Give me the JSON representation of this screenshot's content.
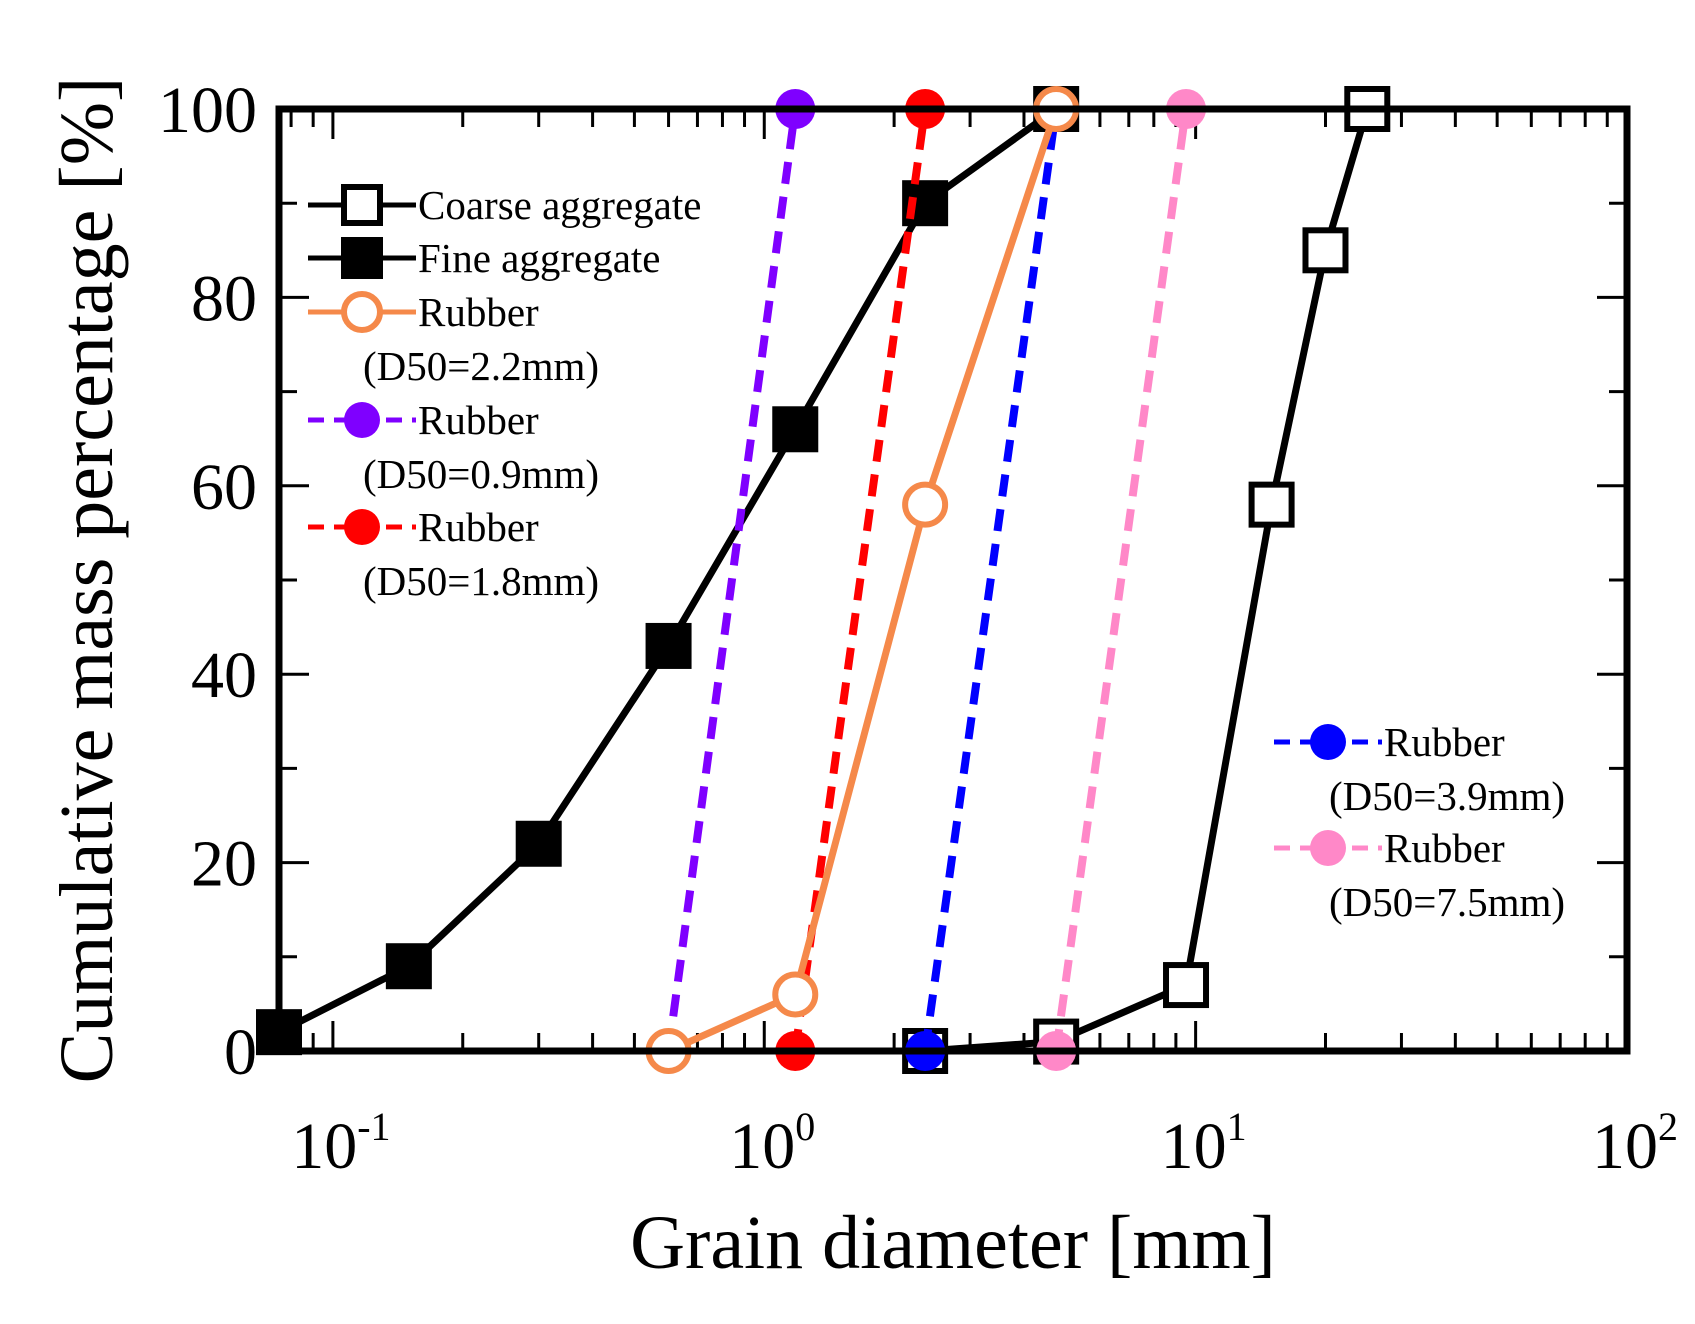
{
  "chart_data": {
    "type": "line",
    "xscale": "log",
    "xlabel": "Grain diameter [mm]",
    "ylabel": "Cumulative mass percentage [%]",
    "xlim": [
      0.075,
      100
    ],
    "ylim": [
      0,
      100
    ],
    "x_ticks": [
      {
        "base": "10",
        "exp": "-1",
        "value": 0.1
      },
      {
        "base": "10",
        "exp": "0",
        "value": 1
      },
      {
        "base": "10",
        "exp": "1",
        "value": 10
      },
      {
        "base": "10",
        "exp": "2",
        "value": 100
      }
    ],
    "y_ticks": [
      "0",
      "20",
      "40",
      "60",
      "80",
      "100"
    ],
    "series": [
      {
        "name": "Coarse aggregate",
        "color": "#000000",
        "line": "solid",
        "marker": "square-open",
        "x": [
          2.36,
          4.75,
          9.5,
          15,
          20,
          25
        ],
        "y": [
          0,
          1,
          7,
          58,
          85,
          100
        ]
      },
      {
        "name": "Fine aggregate",
        "color": "#000000",
        "line": "solid",
        "marker": "square-filled",
        "x": [
          0.075,
          0.15,
          0.3,
          0.6,
          1.18,
          2.36,
          4.75
        ],
        "y": [
          2,
          9,
          22,
          43,
          66,
          90,
          100
        ]
      },
      {
        "name": "Rubber",
        "d50": "(D50=2.2mm)",
        "color": "#f5894a",
        "line": "solid",
        "marker": "circle-open",
        "x": [
          0.6,
          1.18,
          2.36,
          4.75
        ],
        "y": [
          0,
          6,
          58,
          100
        ]
      },
      {
        "name": "Rubber",
        "d50": "(D50=0.9mm)",
        "color": "#7f00ff",
        "line": "dashed",
        "marker": "circle-filled",
        "x": [
          0.6,
          1.18
        ],
        "y": [
          0,
          100
        ]
      },
      {
        "name": "Rubber",
        "d50": "(D50=1.8mm)",
        "color": "#ff0000",
        "line": "dashed",
        "marker": "circle-filled",
        "x": [
          1.18,
          2.36
        ],
        "y": [
          0,
          100
        ]
      },
      {
        "name": "Rubber",
        "d50": "(D50=3.9mm)",
        "color": "#0000ff",
        "line": "dashed",
        "marker": "circle-filled",
        "x": [
          2.36,
          4.75
        ],
        "y": [
          0,
          100
        ]
      },
      {
        "name": "Rubber",
        "d50": "(D50=7.5mm)",
        "color": "#ff88c8",
        "line": "dashed",
        "marker": "circle-filled",
        "x": [
          4.75,
          9.5
        ],
        "y": [
          0,
          100
        ]
      }
    ],
    "legend": [
      {
        "group": "top-left",
        "entries": [
          0,
          1,
          2,
          3,
          4
        ]
      },
      {
        "group": "bottom-right",
        "entries": [
          5,
          6
        ]
      }
    ]
  }
}
